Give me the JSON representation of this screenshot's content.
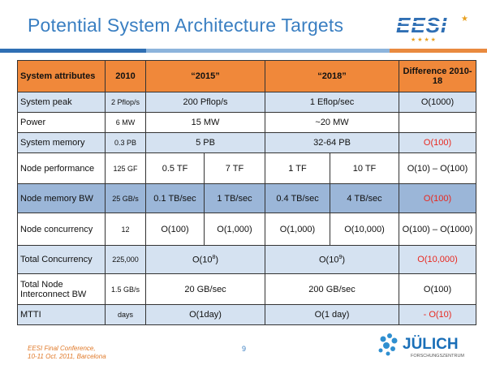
{
  "slide": {
    "title": "Potential System Architecture Targets",
    "footer_line1": "EESI Final Conference,",
    "footer_line2": "10-11 Oct. 2011, Barcelona",
    "page_number": "9",
    "logo_text": "EESI",
    "julich_name": "JÜLICH",
    "julich_sub": "FORSCHUNGSZENTRUM"
  },
  "table": {
    "headers": {
      "attr": "System attributes",
      "y2010": "2010",
      "y2015": "“2015”",
      "y2018": "“2018”",
      "diff": "Difference 2010-18"
    },
    "rows": {
      "peak": {
        "attr": "System peak",
        "y2010": "2 Pflop/s",
        "y2015": "200 Pflop/s",
        "y2018": "1 Eflop/sec",
        "diff": "O(1000)"
      },
      "power": {
        "attr": "Power",
        "y2010": "6 MW",
        "y2015": "15 MW",
        "y2018": "~20 MW",
        "diff": ""
      },
      "memory": {
        "attr": "System memory",
        "y2010": "0.3 PB",
        "y2015": "5 PB",
        "y2018": "32-64 PB",
        "diff": "O(100)"
      },
      "node_perf": {
        "attr": "Node performance",
        "y2010": "125 GF",
        "y2015a": "0.5 TF",
        "y2015b": "7 TF",
        "y2018a": "1 TF",
        "y2018b": "10 TF",
        "diff": "O(10) – O(100)"
      },
      "node_mem": {
        "attr": "Node memory BW",
        "y2010": "25 GB/s",
        "y2015a": "0.1 TB/sec",
        "y2015b": "1 TB/sec",
        "y2018a": "0.4 TB/sec",
        "y2018b": "4 TB/sec",
        "diff": "O(100)"
      },
      "node_conc": {
        "attr": "Node concurrency",
        "y2010": "12",
        "y2015a": "O(100)",
        "y2015b": "O(1,000)",
        "y2018a": "O(1,000)",
        "y2018b": "O(10,000)",
        "diff": "O(100) – O(1000)"
      },
      "total_conc": {
        "attr": "Total Concurrency",
        "y2010": "225,000",
        "y2015": "O(10",
        "y2015_exp": "8",
        "y2015_close": ")",
        "y2018": "O(10",
        "y2018_exp": "9",
        "y2018_close": ")",
        "diff": "O(10,000)"
      },
      "interconnect": {
        "attr": "Total Node Interconnect BW",
        "y2010": "1.5 GB/s",
        "y2015": "20 GB/sec",
        "y2018": "200 GB/sec",
        "diff": "O(100)"
      },
      "mtti": {
        "attr": "MTTI",
        "y2010": "days",
        "y2015": "O(1day)",
        "y2018": "O(1 day)",
        "diff": "- O(10)"
      }
    }
  },
  "colors": {
    "title": "#3a7fc2",
    "header_bg": "#f0883a",
    "row_light": "#d5e2f1",
    "row_mid": "#9bb6d8",
    "highlight_red": "#e8281f",
    "footer": "#e07a2a"
  }
}
